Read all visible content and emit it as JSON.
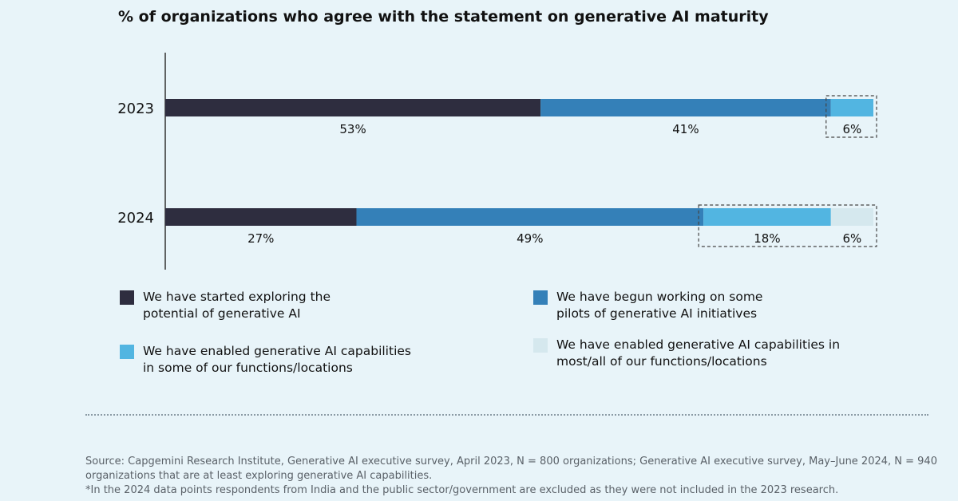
{
  "title": "% of organizations who agree with the statement on generative AI maturity",
  "chart_data": {
    "type": "bar",
    "orientation": "horizontal",
    "stacked": true,
    "categories": [
      "2023",
      "2024"
    ],
    "series": [
      {
        "name": "We have started exploring the\npotential of generative AI",
        "color": "#2e2d3f",
        "values": [
          53,
          27
        ]
      },
      {
        "name": "We have begun working on some\npilots of generative AI initiatives",
        "color": "#3480b8",
        "values": [
          41,
          49
        ]
      },
      {
        "name": "We have enabled generative AI capabilities\nin some of our functions/locations",
        "color": "#52b5e1",
        "values": [
          6,
          18
        ]
      },
      {
        "name": "We have enabled generative AI capabilities in\nmost/all of our functions/locations",
        "color": "#d5e8ee",
        "values": [
          0,
          6
        ]
      }
    ],
    "data_labels": [
      {
        "category": "2023",
        "labels": [
          "53%",
          "41%",
          "6%"
        ]
      },
      {
        "category": "2024",
        "labels": [
          "27%",
          "49%",
          "18%",
          "6%"
        ]
      }
    ],
    "highlight": "dashed box around enabled-capabilities segments",
    "xlim": [
      0,
      100
    ],
    "grid": false,
    "legend": "bottom"
  },
  "source": {
    "line1": "Source: Capgemini Research Institute, Generative AI executive survey, April 2023, N = 800 organizations; Generative AI executive survey, May–June 2024, N = 940 organizations that are at least exploring generative AI capabilities.",
    "line2": "*In the 2024 data points respondents from India and the public sector/government are excluded as they were not included in the 2023 research."
  }
}
